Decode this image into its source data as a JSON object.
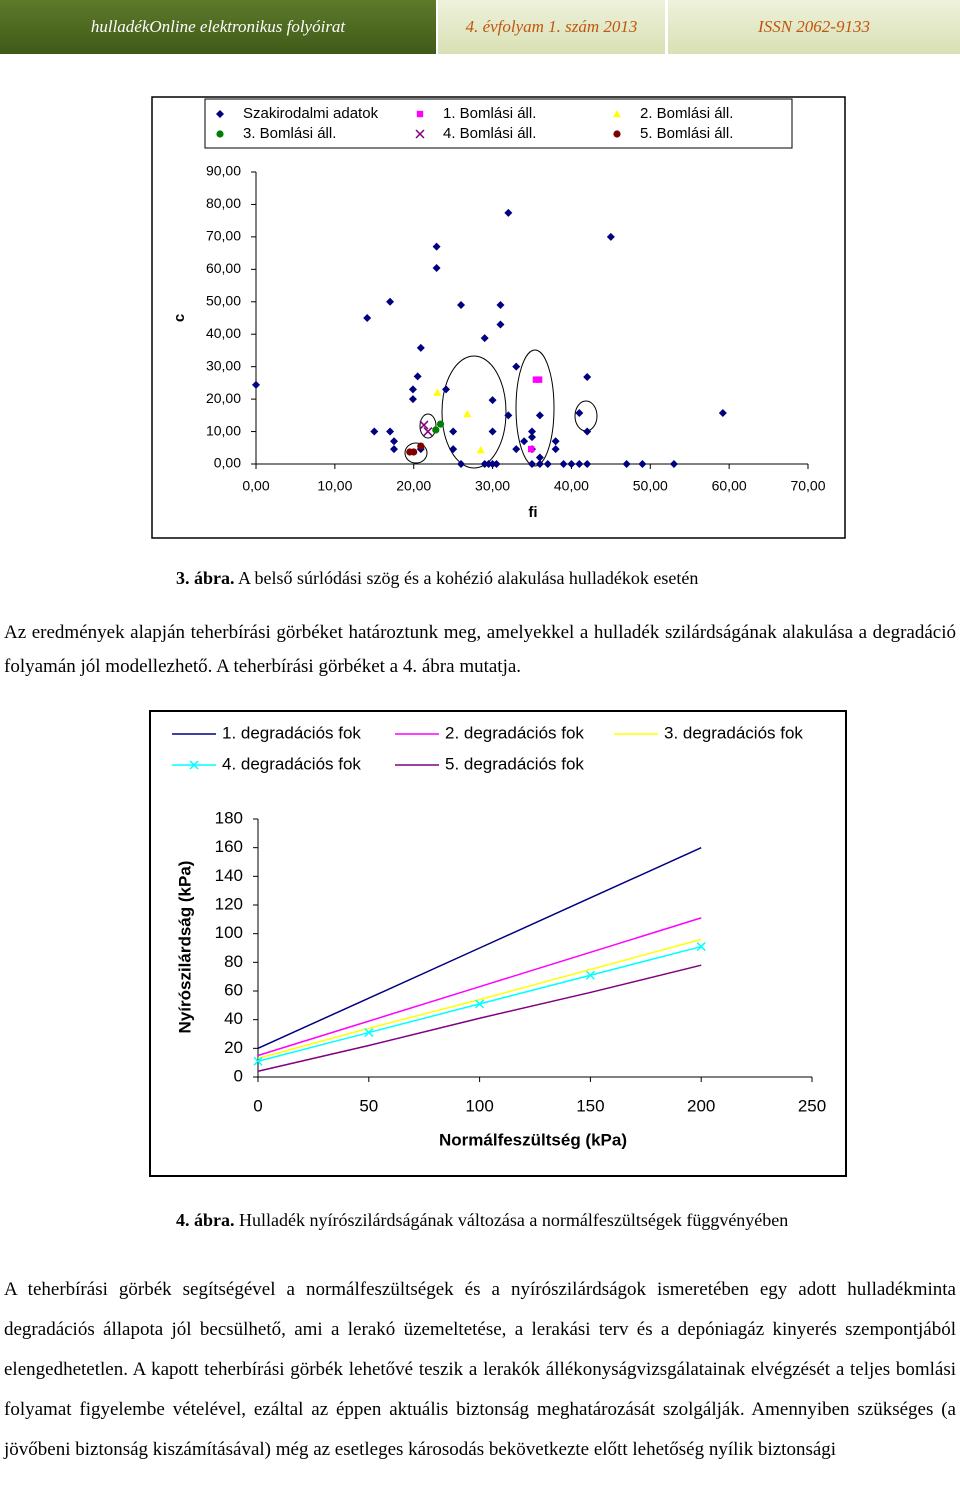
{
  "header": {
    "journal": "hulladékOnline elektronikus folyóirat",
    "issue": "4. évfolyam 1. szám 2013",
    "issn": "ISSN 2062-9133"
  },
  "chart_data": [
    {
      "type": "scatter",
      "y_label": "c",
      "x_label": "fi",
      "xlim": [
        0,
        70
      ],
      "ylim": [
        0,
        90
      ],
      "xticks": [
        {
          "value": 0,
          "label": "0,00"
        },
        {
          "value": 10,
          "label": "10,00"
        },
        {
          "value": 20,
          "label": "20,00"
        },
        {
          "value": 30,
          "label": "30,00"
        },
        {
          "value": 40,
          "label": "40,00"
        },
        {
          "value": 50,
          "label": "50,00"
        },
        {
          "value": 60,
          "label": "60,00"
        },
        {
          "value": 70,
          "label": "70,00"
        }
      ],
      "yticks": [
        {
          "value": 0,
          "label": "0,00"
        },
        {
          "value": 10,
          "label": "10,00"
        },
        {
          "value": 20,
          "label": "20,00"
        },
        {
          "value": 30,
          "label": "30,00"
        },
        {
          "value": 40,
          "label": "40,00"
        },
        {
          "value": 50,
          "label": "50,00"
        },
        {
          "value": 60,
          "label": "60,00"
        },
        {
          "value": 70,
          "label": "70,00"
        },
        {
          "value": 80,
          "label": "80,00"
        },
        {
          "value": 90,
          "label": "90,00"
        }
      ],
      "series": [
        {
          "name": "Szakirodalmi adatok",
          "color": "#000080",
          "marker": "diamond",
          "x": [
            0,
            14.1,
            17,
            15,
            17,
            17.5,
            17.5,
            20.5,
            20.9,
            19.9,
            19.9,
            20.9,
            22.9,
            22.9,
            24.1,
            25,
            25,
            26,
            26,
            29,
            30,
            30,
            31,
            31,
            32,
            32,
            33,
            33,
            29,
            29.5,
            30,
            30.5,
            34,
            35,
            35,
            35,
            35,
            36,
            36,
            36,
            37,
            38,
            38,
            39,
            40,
            41,
            42,
            41,
            42,
            42,
            45,
            47,
            49,
            53,
            59.2
          ],
          "values": [
            24.4,
            45,
            50,
            10,
            10,
            7,
            4.6,
            27,
            35.8,
            23,
            20,
            4.6,
            67,
            60.4,
            23,
            10,
            4.6,
            49,
            0,
            38.8,
            19.7,
            10,
            49,
            43,
            77.4,
            15,
            30,
            4.6,
            0,
            0,
            0,
            0,
            7,
            10,
            8.3,
            4.6,
            0,
            15,
            2,
            0,
            0,
            7,
            4.6,
            0,
            0,
            0,
            0,
            15.7,
            26.8,
            10,
            70,
            0,
            0,
            0,
            15.7
          ]
        },
        {
          "name": "1. Bomlási áll.",
          "color": "#ff00ff",
          "marker": "square",
          "x": [
            35.5,
            35.9,
            34.9
          ],
          "values": [
            26,
            26,
            4.6
          ]
        },
        {
          "name": "2. Bomlási áll.",
          "color": "#ffff00",
          "marker": "triangle",
          "x": [
            23,
            26.8,
            28.5
          ],
          "values": [
            22,
            15.4,
            4.3
          ]
        },
        {
          "name": "3. Bomlási áll.",
          "color": "#008000",
          "marker": "circle",
          "x": [
            22.8,
            23.4
          ],
          "values": [
            10.5,
            12.3
          ]
        },
        {
          "name": "4. Bomlási áll.",
          "color": "#800080",
          "marker": "x",
          "x": [
            21.3,
            21.8
          ],
          "values": [
            12,
            10
          ]
        },
        {
          "name": "5. Bomlási áll.",
          "color": "#800000",
          "marker": "circle",
          "x": [
            19.5,
            20,
            20.9
          ],
          "values": [
            3.7,
            3.7,
            5.5
          ]
        }
      ]
    },
    {
      "type": "line",
      "y_label": "Nyírószilárdság (kPa)",
      "x_label": "Normálfeszültség (kPa)",
      "xlim": [
        0,
        250
      ],
      "ylim": [
        0,
        180
      ],
      "xticks": [
        0,
        50,
        100,
        150,
        200,
        250
      ],
      "yticks": [
        0,
        20,
        40,
        60,
        80,
        100,
        120,
        140,
        160,
        180
      ],
      "x": [
        0,
        50,
        100,
        150,
        200
      ],
      "series": [
        {
          "name": "1. degradációs fok",
          "color": "#000080",
          "values": [
            20,
            55,
            90,
            125,
            160
          ]
        },
        {
          "name": "2. degradációs fok",
          "color": "#ff00ff",
          "values": [
            15,
            39,
            63,
            87,
            111
          ]
        },
        {
          "name": "3. degradációs fok",
          "color": "#ffff00",
          "values": [
            13,
            34,
            54,
            75,
            96
          ]
        },
        {
          "name": "4. degradációs fok",
          "color": "#00ffff",
          "marker": "x",
          "values": [
            11,
            31,
            51,
            71,
            91
          ]
        },
        {
          "name": "5. degradációs fok",
          "color": "#800080",
          "values": [
            4,
            22,
            41,
            59,
            78
          ]
        }
      ]
    }
  ],
  "captions": [
    {
      "label": "3. ábra.",
      "text": "A belső súrlódási szög és a kohézió alakulása hulladékok esetén"
    },
    {
      "label": "4. ábra.",
      "text": "Hulladék nyírószilárdságának változása a normálfeszültségek függvényében"
    }
  ],
  "paragraphs": [
    "Az eredmények alapján teherbírási görbéket határoztunk meg, amelyekkel a hulladék szilárdságának alakulása a degradáció folyamán jól modellezhető. A teherbírási görbéket a 4. ábra mutatja.",
    "A teherbírási görbék segítségével a normálfeszültségek és a nyírószilárdságok ismeretében egy adott hulladékminta degradációs állapota jól becsülhető, ami a lerakó üzemeltetése, a lerakási terv és a depóniagáz kinyerés szempontjából elengedhetetlen. A kapott teherbírási görbék lehetővé teszik a lerakók állékonyságvizsgálatainak elvégzését a teljes bomlási folyamat figyelembe vételével, ezáltal az éppen aktuális biztonság meghatározását szolgálják. Amennyiben szükséges (a jövőbeni biztonság kiszámításával) még az esetleges károsodás bekövetkezte előtt lehetőség nyílik biztonsági"
  ]
}
